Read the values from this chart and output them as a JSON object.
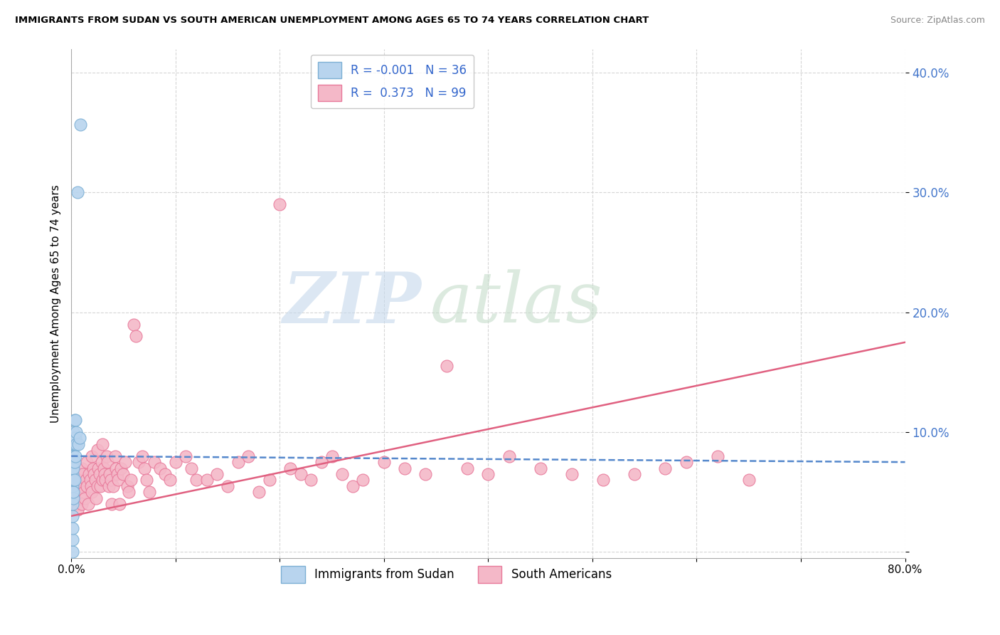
{
  "title": "IMMIGRANTS FROM SUDAN VS SOUTH AMERICAN UNEMPLOYMENT AMONG AGES 65 TO 74 YEARS CORRELATION CHART",
  "source": "Source: ZipAtlas.com",
  "ylabel": "Unemployment Among Ages 65 to 74 years",
  "xlim": [
    0.0,
    0.8
  ],
  "ylim": [
    -0.005,
    0.42
  ],
  "yticks": [
    0.0,
    0.1,
    0.2,
    0.3,
    0.4
  ],
  "ytick_labels": [
    "",
    "10.0%",
    "20.0%",
    "30.0%",
    "40.0%"
  ],
  "xticks": [
    0.0,
    0.1,
    0.2,
    0.3,
    0.4,
    0.5,
    0.6,
    0.7,
    0.8
  ],
  "xtick_labels": [
    "0.0%",
    "",
    "",
    "",
    "",
    "",
    "",
    "",
    "80.0%"
  ],
  "sudan_color": "#b8d4ee",
  "sudan_edge": "#7bafd4",
  "sa_color": "#f4b8c8",
  "sa_edge": "#e8799a",
  "trend_sudan_color": "#5588cc",
  "trend_sa_color": "#e06080",
  "legend_R_sudan": "-0.001",
  "legend_N_sudan": "36",
  "legend_R_sa": "0.373",
  "legend_N_sa": "99",
  "sudan_label": "Immigrants from Sudan",
  "sa_label": "South Americans",
  "watermark_zip": "ZIP",
  "watermark_atlas": "atlas",
  "sudan_x": [
    0.001,
    0.001,
    0.001,
    0.001,
    0.001,
    0.001,
    0.001,
    0.001,
    0.001,
    0.001,
    0.001,
    0.001,
    0.001,
    0.001,
    0.002,
    0.002,
    0.002,
    0.002,
    0.002,
    0.002,
    0.002,
    0.002,
    0.003,
    0.003,
    0.003,
    0.003,
    0.003,
    0.004,
    0.004,
    0.004,
    0.005,
    0.005,
    0.006,
    0.007,
    0.008,
    0.009
  ],
  "sudan_y": [
    0.0,
    0.01,
    0.02,
    0.03,
    0.04,
    0.05,
    0.055,
    0.065,
    0.07,
    0.075,
    0.08,
    0.085,
    0.09,
    0.095,
    0.045,
    0.05,
    0.06,
    0.07,
    0.08,
    0.09,
    0.095,
    0.1,
    0.06,
    0.075,
    0.09,
    0.095,
    0.11,
    0.08,
    0.095,
    0.11,
    0.09,
    0.1,
    0.3,
    0.09,
    0.095,
    0.357
  ],
  "sa_x": [
    0.003,
    0.005,
    0.006,
    0.007,
    0.008,
    0.009,
    0.01,
    0.01,
    0.011,
    0.012,
    0.013,
    0.014,
    0.015,
    0.015,
    0.016,
    0.017,
    0.018,
    0.019,
    0.02,
    0.02,
    0.021,
    0.022,
    0.023,
    0.024,
    0.025,
    0.025,
    0.026,
    0.027,
    0.028,
    0.029,
    0.03,
    0.03,
    0.031,
    0.032,
    0.033,
    0.034,
    0.035,
    0.036,
    0.037,
    0.038,
    0.039,
    0.04,
    0.042,
    0.043,
    0.044,
    0.045,
    0.046,
    0.048,
    0.05,
    0.052,
    0.054,
    0.055,
    0.057,
    0.06,
    0.062,
    0.065,
    0.068,
    0.07,
    0.072,
    0.075,
    0.08,
    0.085,
    0.09,
    0.095,
    0.1,
    0.11,
    0.115,
    0.12,
    0.13,
    0.14,
    0.15,
    0.16,
    0.17,
    0.18,
    0.19,
    0.2,
    0.21,
    0.22,
    0.23,
    0.24,
    0.25,
    0.26,
    0.27,
    0.28,
    0.3,
    0.32,
    0.34,
    0.36,
    0.38,
    0.4,
    0.42,
    0.45,
    0.48,
    0.51,
    0.54,
    0.57,
    0.59,
    0.62,
    0.65
  ],
  "sa_y": [
    0.05,
    0.04,
    0.035,
    0.06,
    0.055,
    0.045,
    0.04,
    0.07,
    0.065,
    0.05,
    0.045,
    0.06,
    0.055,
    0.075,
    0.04,
    0.065,
    0.06,
    0.055,
    0.05,
    0.08,
    0.07,
    0.065,
    0.06,
    0.045,
    0.055,
    0.085,
    0.07,
    0.065,
    0.055,
    0.075,
    0.06,
    0.09,
    0.07,
    0.065,
    0.06,
    0.08,
    0.075,
    0.055,
    0.065,
    0.06,
    0.04,
    0.055,
    0.08,
    0.07,
    0.065,
    0.06,
    0.04,
    0.07,
    0.065,
    0.075,
    0.055,
    0.05,
    0.06,
    0.19,
    0.18,
    0.075,
    0.08,
    0.07,
    0.06,
    0.05,
    0.075,
    0.07,
    0.065,
    0.06,
    0.075,
    0.08,
    0.07,
    0.06,
    0.06,
    0.065,
    0.055,
    0.075,
    0.08,
    0.05,
    0.06,
    0.29,
    0.07,
    0.065,
    0.06,
    0.075,
    0.08,
    0.065,
    0.055,
    0.06,
    0.075,
    0.07,
    0.065,
    0.155,
    0.07,
    0.065,
    0.08,
    0.07,
    0.065,
    0.06,
    0.065,
    0.07,
    0.075,
    0.08,
    0.06
  ],
  "trend_sa_x0": 0.0,
  "trend_sa_y0": 0.03,
  "trend_sa_x1": 0.8,
  "trend_sa_y1": 0.175,
  "trend_sudan_x0": 0.0,
  "trend_sudan_y0": 0.08,
  "trend_sudan_x1": 0.8,
  "trend_sudan_y1": 0.075
}
